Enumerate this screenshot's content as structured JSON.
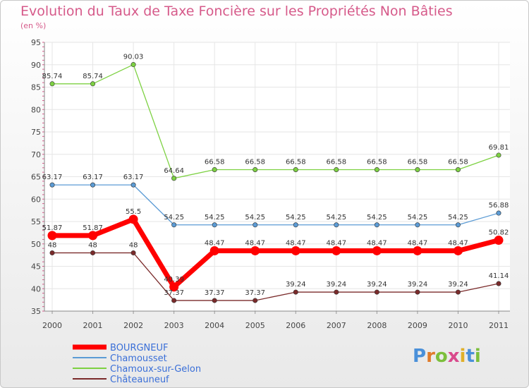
{
  "chart_data": {
    "type": "line",
    "title": "Evolution du Taux de Taxe Foncière sur les Propriétés Non Bâties",
    "subtitle": "(en %)",
    "categories": [
      "2000",
      "2001",
      "2002",
      "2003",
      "2004",
      "2005",
      "2006",
      "2007",
      "2008",
      "2009",
      "2010",
      "2011"
    ],
    "ylim": [
      35,
      95
    ],
    "yticks": [
      35,
      40,
      45,
      50,
      55,
      60,
      65,
      70,
      75,
      80,
      85,
      90,
      95
    ],
    "grid": true,
    "legend_position": "bottom-left",
    "series": [
      {
        "name": "BOURGNEUF",
        "color": "#ff0000",
        "values": [
          51.87,
          51.87,
          55.5,
          40.39,
          48.47,
          48.47,
          48.47,
          48.47,
          48.47,
          48.47,
          48.47,
          50.82
        ],
        "labels": [
          "51.87",
          "51.87",
          "55.5",
          "40.39",
          "48.47",
          "48.47",
          "48.47",
          "48.47",
          "48.47",
          "48.47",
          "48.47",
          "50.82"
        ]
      },
      {
        "name": "Chamousset",
        "color": "#5b9bd5",
        "values": [
          63.17,
          63.17,
          63.17,
          54.25,
          54.25,
          54.25,
          54.25,
          54.25,
          54.25,
          54.25,
          54.25,
          56.88
        ],
        "labels": [
          "63.17",
          "63.17",
          "63.17",
          "54.25",
          "54.25",
          "54.25",
          "54.25",
          "54.25",
          "54.25",
          "54.25",
          "54.25",
          "56.88"
        ]
      },
      {
        "name": "Chamoux-sur-Gelon",
        "color": "#7dd142",
        "values": [
          85.74,
          85.74,
          90.03,
          64.64,
          66.58,
          66.58,
          66.58,
          66.58,
          66.58,
          66.58,
          66.58,
          69.81
        ],
        "labels": [
          "85.74",
          "85.74",
          "90.03",
          "64.64",
          "66.58",
          "66.58",
          "66.58",
          "66.58",
          "66.58",
          "66.58",
          "66.58",
          "69.81"
        ]
      },
      {
        "name": "Châteauneuf",
        "color": "#7a2a2a",
        "values": [
          48,
          48,
          48,
          37.37,
          37.37,
          37.37,
          39.24,
          39.24,
          39.24,
          39.24,
          39.24,
          41.14
        ],
        "labels": [
          "48",
          "48",
          "48",
          "37.37",
          "37.37",
          "37.37",
          "39.24",
          "39.24",
          "39.24",
          "39.24",
          "39.24",
          "41.14"
        ]
      }
    ]
  },
  "logo_text": "Proxiti"
}
